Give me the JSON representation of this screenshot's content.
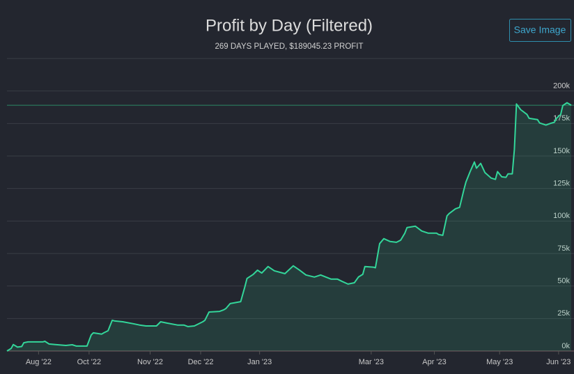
{
  "chart_data": {
    "type": "line",
    "title": "Profit by Day (Filtered)",
    "subtitle": "269 DAYS PLAYED, $189045.23 PROFIT",
    "button": "Save Image",
    "color": "#33d69a",
    "reference_line": 189045.23,
    "x": [
      0,
      2,
      3,
      5,
      7,
      8,
      10,
      17,
      18,
      20,
      23,
      28,
      31,
      33,
      38,
      40,
      41,
      45,
      46,
      48,
      50,
      51,
      55,
      60,
      63,
      66,
      71,
      73,
      76,
      81,
      84,
      86,
      89,
      93,
      94,
      96,
      101,
      103,
      104,
      106,
      111,
      113,
      114,
      117,
      119,
      121,
      124,
      127,
      132,
      136,
      139,
      142,
      146,
      149,
      154,
      157,
      159,
      162,
      165,
      167,
      169,
      170,
      174,
      175,
      177,
      179,
      182,
      185,
      187,
      189,
      190,
      194,
      197,
      200,
      204,
      205,
      207,
      209,
      210,
      213,
      215,
      217,
      218,
      220,
      222,
      223,
      225,
      227,
      230,
      232,
      233,
      235,
      237,
      238,
      240,
      241,
      242,
      244,
      247,
      248,
      252,
      253,
      256,
      258,
      260,
      261,
      263,
      264,
      266,
      268
    ],
    "values": [
      0,
      2000,
      5000,
      3000,
      3500,
      6400,
      7000,
      7000,
      7500,
      5400,
      5000,
      4300,
      4800,
      3800,
      3800,
      12300,
      14000,
      13000,
      14000,
      15600,
      23600,
      23200,
      22500,
      21000,
      20000,
      19300,
      19300,
      22500,
      21500,
      20000,
      20000,
      18800,
      19300,
      22500,
      23600,
      30000,
      30500,
      31700,
      32700,
      36500,
      38000,
      49400,
      55800,
      59000,
      62200,
      60000,
      65000,
      61700,
      59500,
      65500,
      62200,
      58500,
      56900,
      58500,
      55300,
      55300,
      53700,
      51500,
      52500,
      57000,
      59000,
      65000,
      64500,
      64000,
      82600,
      86400,
      84200,
      83600,
      85300,
      90700,
      95000,
      96000,
      92300,
      90700,
      90700,
      89600,
      89000,
      104000,
      105700,
      109400,
      110500,
      124000,
      130000,
      138000,
      145400,
      140600,
      144300,
      137300,
      133000,
      132000,
      138000,
      134000,
      133600,
      136300,
      136300,
      155000,
      190000,
      185600,
      182000,
      179000,
      178000,
      175400,
      173800,
      175000,
      176000,
      179000,
      182000,
      188800,
      191000,
      189045.23
    ],
    "xlim": [
      0,
      268
    ],
    "xticks": [
      {
        "value": 15,
        "label": "Aug '22"
      },
      {
        "value": 39,
        "label": "Oct '22"
      },
      {
        "value": 68,
        "label": "Nov '22"
      },
      {
        "value": 92,
        "label": "Dec '22"
      },
      {
        "value": 120,
        "label": "Jan '23"
      },
      {
        "value": 173,
        "label": "Mar '23"
      },
      {
        "value": 203,
        "label": "Apr '23"
      },
      {
        "value": 234,
        "label": "May '23"
      },
      {
        "value": 262,
        "label": "Jun '23"
      }
    ],
    "ylim": [
      0,
      225000
    ],
    "yticks": [
      {
        "value": 0,
        "label": "0k"
      },
      {
        "value": 25000,
        "label": "25k"
      },
      {
        "value": 50000,
        "label": "50k"
      },
      {
        "value": 75000,
        "label": "75k"
      },
      {
        "value": 100000,
        "label": "100k"
      },
      {
        "value": 125000,
        "label": "125k"
      },
      {
        "value": 150000,
        "label": "150k"
      },
      {
        "value": 175000,
        "label": "175k"
      },
      {
        "value": 200000,
        "label": "200k"
      }
    ],
    "grid": true
  }
}
